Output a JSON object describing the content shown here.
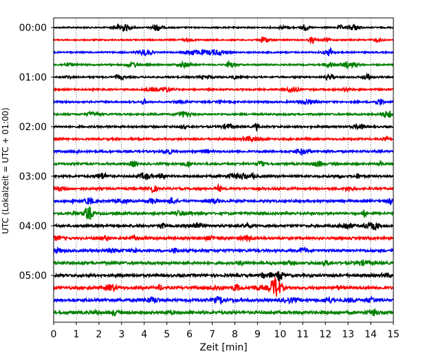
{
  "chart_data": {
    "type": "line",
    "title": "",
    "xlabel": "Zeit  [min]",
    "ylabel": "UTC (Lokalzeit = UTC + 01:00)",
    "xlim": [
      0,
      15
    ],
    "x_ticks": [
      0,
      1,
      2,
      3,
      4,
      5,
      6,
      7,
      8,
      9,
      10,
      11,
      12,
      13,
      14,
      15
    ],
    "x_tick_labels": [
      "0",
      "1",
      "2",
      "3",
      "4",
      "5",
      "6",
      "7",
      "8",
      "9",
      "10",
      "11",
      "12",
      "13",
      "14",
      "15"
    ],
    "y_tick_labels": [
      "00:00",
      "01:00",
      "02:00",
      "03:00",
      "04:00",
      "05:00"
    ],
    "grid": "vertical dotted",
    "trace_minutes": 15,
    "trace_count": 24,
    "trace_colors": [
      "#000000",
      "#ff0000",
      "#0000ff",
      "#008000"
    ],
    "events": [
      {
        "trace_start": "05:15",
        "x_min": 9.8,
        "note": "large amplitude burst"
      },
      {
        "trace_start": "05:00",
        "x_min": 10.0,
        "note": "moderate burst"
      }
    ]
  }
}
